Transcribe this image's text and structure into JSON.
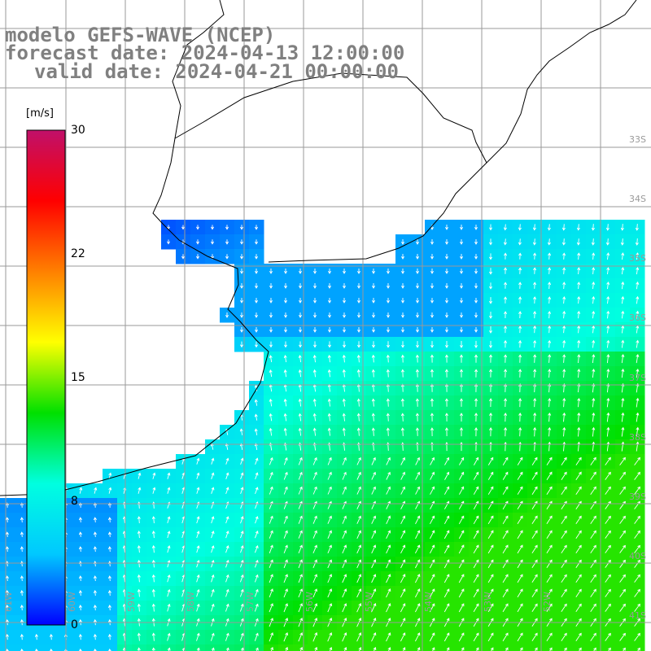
{
  "title": {
    "line1": "modelo GEFS-WAVE (NCEP)",
    "line2": "forecast date: 2024-04-13 12:00:00",
    "line3": "valid date: 2024-04-21 00:00:00"
  },
  "colorbar": {
    "unit": "[m/s]",
    "min": 0,
    "max": 30,
    "ticks": [
      "30",
      "22",
      "15",
      "8",
      "0"
    ],
    "stops": [
      "#0000ff",
      "#00c8ff",
      "#00ffe0",
      "#00e000",
      "#ffff00",
      "#ff8000",
      "#ff0000",
      "#c0106a"
    ]
  },
  "map": {
    "lat_labels": [
      "33S",
      "34S",
      "35S",
      "36S",
      "37S",
      "38S",
      "39S",
      "40S",
      "41S"
    ],
    "lon_labels": [
      "61W",
      "60W",
      "59W",
      "58W",
      "57W",
      "56W",
      "55W",
      "54W",
      "53W",
      "52W"
    ],
    "colors": {
      "land": "#ffffff",
      "grid": "#9a9a9a",
      "coast": "#000000",
      "arrow": "#ffffff"
    }
  }
}
